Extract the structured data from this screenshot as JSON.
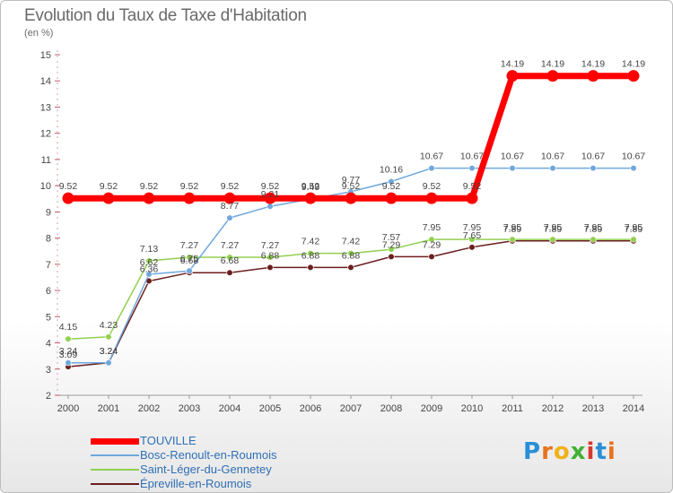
{
  "header": {
    "title": "Evolution du Taux de Taxe d'Habitation",
    "subtitle": "(en %)"
  },
  "logo": {
    "text": "Proxiti",
    "letters": [
      "P",
      "r",
      "o",
      "x",
      "i",
      "t",
      "i"
    ],
    "colors": [
      "#2a8fd6",
      "#e8731c",
      "#f0b21a",
      "#44b035",
      "#d63a2f",
      "#2a8fd6",
      "#e8731c"
    ]
  },
  "chart_data": {
    "type": "line",
    "title": "Evolution du Taux de Taxe d'Habitation",
    "ylabel": "(en %)",
    "xlabel": "",
    "x": [
      "2000",
      "2001",
      "2002",
      "2003",
      "2004",
      "2005",
      "2006",
      "2007",
      "2008",
      "2009",
      "2010",
      "2011",
      "2012",
      "2013",
      "2014"
    ],
    "ylim": [
      2,
      15
    ],
    "yticks": [
      2,
      3,
      4,
      5,
      6,
      7,
      8,
      9,
      10,
      11,
      12,
      13,
      14,
      15
    ],
    "grid": false,
    "legend_position": "bottom-left",
    "series": [
      {
        "name": "TOUVILLE",
        "color": "#ff0000",
        "values": [
          9.52,
          9.52,
          9.52,
          9.52,
          9.52,
          9.52,
          9.52,
          9.52,
          9.52,
          9.52,
          9.52,
          14.19,
          14.19,
          14.19,
          14.19
        ],
        "labels": [
          "9.52",
          "9.52",
          "9.52",
          "9.52",
          "9.52",
          "9.52",
          "9.52",
          "9.52",
          "9.52",
          "9.52",
          "9.52",
          "14.19",
          "14.19",
          "14.19",
          "14.19"
        ]
      },
      {
        "name": "Bosc-Renoult-en-Roumois",
        "color": "#6fa8dc",
        "values": [
          3.24,
          3.24,
          6.62,
          6.75,
          8.77,
          9.21,
          9.49,
          9.77,
          10.16,
          10.67,
          10.67,
          10.67,
          10.67,
          10.67,
          10.67
        ],
        "labels": [
          "3.24",
          "3.24",
          "6.62",
          "6.75",
          "8.77",
          "9.21",
          "9.49",
          "9.77",
          "10.16",
          "10.67",
          "10.67",
          "10.67",
          "10.67",
          "10.67",
          "10.67"
        ]
      },
      {
        "name": "Saint-Léger-du-Gennetey",
        "color": "#92d050",
        "values": [
          4.15,
          4.23,
          7.13,
          7.27,
          7.27,
          7.27,
          7.42,
          7.42,
          7.57,
          7.95,
          7.95,
          7.95,
          7.95,
          7.95,
          7.95
        ],
        "labels": [
          "4.15",
          "4.23",
          "7.13",
          "7.27",
          "7.27",
          "7.27",
          "7.42",
          "7.42",
          "7.57",
          "7.95",
          "7.95",
          "7.95",
          "7.95",
          "7.95",
          "7.95"
        ]
      },
      {
        "name": "Épreville-en-Roumois",
        "color": "#6b1e1e",
        "values": [
          3.09,
          3.24,
          6.36,
          6.68,
          6.68,
          6.88,
          6.88,
          6.88,
          7.29,
          7.29,
          7.65,
          7.89,
          7.89,
          7.89,
          7.89
        ],
        "labels": [
          "3.09",
          "3.24",
          "6.36",
          "6.68",
          "6.68",
          "6.88",
          "6.88",
          "6.88",
          "7.29",
          "7.29",
          "7.65",
          "7.89",
          "7.89",
          "7.89",
          "7.89"
        ]
      }
    ]
  }
}
